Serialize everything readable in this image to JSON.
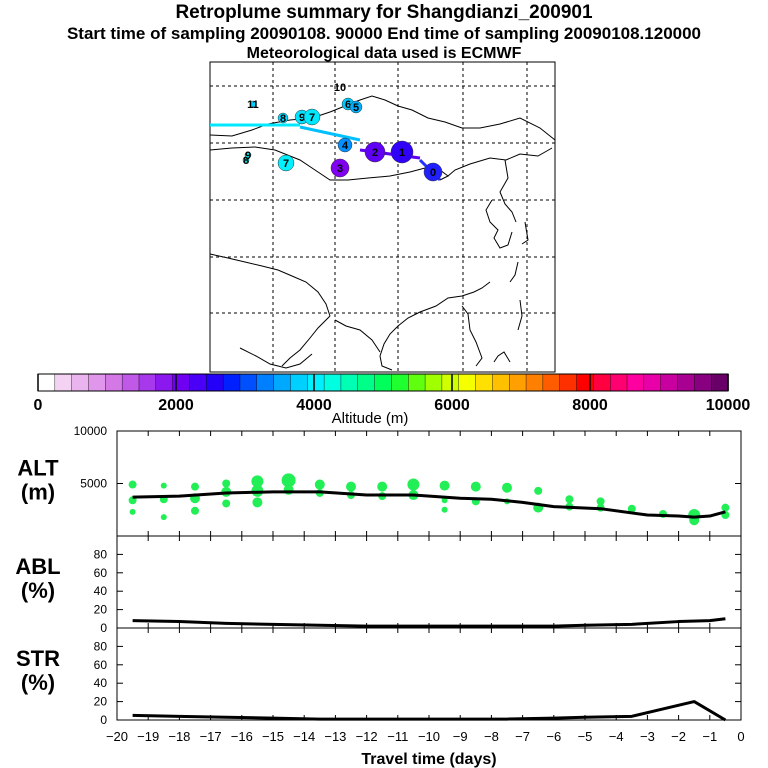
{
  "header": {
    "title": "Retroplume summary for Shangdianzi_200901",
    "line2": "Start time of sampling 20090108. 90000     End time of sampling 20090108.120000",
    "line3": "Meteorological data used is ECMWF"
  },
  "colorbar": {
    "ticks": [
      "0",
      "2000",
      "4000",
      "6000",
      "8000",
      "10000"
    ],
    "tick_values": [
      0,
      2000,
      4000,
      6000,
      8000,
      10000
    ],
    "label": "Altitude (m)",
    "colors": [
      "#ffffff",
      "#f4d2f4",
      "#eab4ee",
      "#e096ea",
      "#d478e6",
      "#c058e8",
      "#a838ec",
      "#8c18f0",
      "#7000f2",
      "#4a00f6",
      "#2400f8",
      "#0020ff",
      "#0050ff",
      "#0080ff",
      "#00a8ff",
      "#00d0ff",
      "#00f0ff",
      "#00ffe0",
      "#00ffb4",
      "#00ff88",
      "#00ff5a",
      "#20ff30",
      "#60ff10",
      "#a0ff00",
      "#d0ff00",
      "#f6ff00",
      "#ffe000",
      "#ffc000",
      "#ffa000",
      "#ff8000",
      "#ff5c00",
      "#ff3000",
      "#ff0000",
      "#ff0040",
      "#ff0070",
      "#ff00a0",
      "#e800a8",
      "#c800a0",
      "#a80090",
      "#880080",
      "#680068"
    ]
  },
  "map": {
    "markers": [
      {
        "label": "10",
        "color": "#ffffff",
        "size": 0
      },
      {
        "label": "11",
        "color": "#00d0ff",
        "size": 3
      },
      {
        "label": "9",
        "color": "#00e0ff",
        "size": 7
      },
      {
        "label": "8",
        "color": "#00d8ff",
        "size": 5
      },
      {
        "label": "7",
        "color": "#00e8ff",
        "size": 8
      },
      {
        "label": "6",
        "color": "#00c8ff",
        "size": 6
      },
      {
        "label": "5",
        "color": "#00b0ff",
        "size": 6
      },
      {
        "label": "4",
        "color": "#0090ff",
        "size": 7
      },
      {
        "label": "3",
        "color": "#8000f0",
        "size": 9
      },
      {
        "label": "2",
        "color": "#6000f4",
        "size": 10
      },
      {
        "label": "1",
        "color": "#3000f8",
        "size": 11
      },
      {
        "label": "0",
        "color": "#2020ff",
        "size": 9
      },
      {
        "label": "7",
        "color": "#00f0ff",
        "size": 8
      },
      {
        "label": "8",
        "color": "#00e0e0",
        "size": 3
      },
      {
        "label": "9",
        "color": "#00e0e0",
        "size": 3
      }
    ]
  },
  "chart_data": [
    {
      "type": "scatter",
      "name": "ALT",
      "ylabel": "ALT\n(m)",
      "ylabel_lines": [
        "ALT",
        "(m)"
      ],
      "ylim": [
        0,
        10000
      ],
      "yticks": [
        0,
        5000,
        10000
      ],
      "ytick_labels": [
        "",
        "5000",
        "10000"
      ],
      "xlim": [
        -20,
        0
      ],
      "line": {
        "x": [
          -19.5,
          -18,
          -16.5,
          -15,
          -13.5,
          -12,
          -10.5,
          -9,
          -8,
          -7,
          -6,
          -4.5,
          -3,
          -2,
          -1.5,
          -1,
          -0.5
        ],
        "y": [
          3700,
          3800,
          4100,
          4200,
          4200,
          3900,
          3900,
          3600,
          3500,
          3200,
          2800,
          2600,
          2000,
          1900,
          1800,
          1900,
          2300
        ]
      },
      "points": {
        "x": [
          -19.5,
          -19.5,
          -19.5,
          -18.5,
          -18.5,
          -18.5,
          -17.5,
          -17.5,
          -17.5,
          -16.5,
          -16.5,
          -16.5,
          -15.5,
          -15.5,
          -15.5,
          -14.5,
          -14.5,
          -13.5,
          -13.5,
          -12.5,
          -12.5,
          -11.5,
          -11.5,
          -10.5,
          -10.5,
          -9.5,
          -9.5,
          -9.5,
          -8.5,
          -8.5,
          -7.5,
          -7.5,
          -6.5,
          -6.5,
          -5.5,
          -5.5,
          -4.5,
          -4.5,
          -3.5,
          -2.5,
          -1.5,
          -1.5,
          -0.5,
          -0.5
        ],
        "y": [
          4900,
          3400,
          2300,
          4800,
          3500,
          1800,
          4700,
          3600,
          2400,
          5000,
          4200,
          3100,
          5200,
          4300,
          3200,
          5300,
          4400,
          4900,
          4100,
          4700,
          3900,
          4700,
          3800,
          4900,
          3900,
          4800,
          3400,
          2500,
          4700,
          3300,
          4600,
          3300,
          4300,
          2700,
          3500,
          2800,
          3300,
          2700,
          2600,
          2100,
          2000,
          1500,
          2700,
          2000
        ],
        "sizes": [
          4,
          4,
          3,
          3,
          4,
          3,
          4,
          5,
          4,
          4,
          5,
          4,
          6,
          6,
          5,
          7,
          5,
          5,
          4,
          5,
          4,
          5,
          4,
          6,
          5,
          5,
          3,
          3,
          5,
          4,
          5,
          3,
          4,
          5,
          4,
          4,
          4,
          4,
          4,
          4,
          6,
          5,
          4,
          4
        ],
        "color": "#22ee55"
      }
    },
    {
      "type": "line",
      "name": "ABL",
      "ylabel": "ABL\n(%)",
      "ylabel_lines": [
        "ABL",
        "(%)"
      ],
      "ylim": [
        0,
        100
      ],
      "yticks": [
        0,
        20,
        40,
        60,
        80
      ],
      "ytick_labels": [
        "0",
        "20",
        "40",
        "60",
        "80"
      ],
      "xlim": [
        -20,
        0
      ],
      "x": [
        -19.5,
        -18,
        -16.5,
        -15,
        -13.5,
        -12,
        -10.5,
        -9,
        -7.5,
        -6,
        -5,
        -3.5,
        -2,
        -1,
        -0.5
      ],
      "y": [
        8,
        7,
        5,
        4,
        3,
        2,
        2,
        2,
        2,
        2,
        3,
        4,
        7,
        8,
        10
      ]
    },
    {
      "type": "line",
      "name": "STR",
      "ylabel": "STR\n(%)",
      "ylabel_lines": [
        "STR",
        "(%)"
      ],
      "ylim": [
        0,
        100
      ],
      "yticks": [
        0,
        20,
        40,
        60,
        80
      ],
      "ytick_labels": [
        "0",
        "20",
        "40",
        "60",
        "80"
      ],
      "xlim": [
        -20,
        0
      ],
      "xticks": [
        -20,
        -19,
        -18,
        -17,
        -16,
        -15,
        -14,
        -13,
        -12,
        -11,
        -10,
        -9,
        -8,
        -7,
        -6,
        -5,
        -4,
        -3,
        -2,
        -1,
        0
      ],
      "xtick_labels": [
        "−20",
        "−19",
        "−18",
        "−17",
        "−16",
        "−15",
        "−14",
        "−13",
        "−12",
        "−11",
        "−10",
        "−9",
        "−8",
        "−7",
        "−6",
        "−5",
        "−4",
        "−3",
        "−2",
        "−1",
        "0"
      ],
      "xlabel": "Travel time (days)",
      "x": [
        -19.5,
        -18,
        -16.5,
        -15,
        -13.5,
        -12,
        -10.5,
        -9,
        -7.5,
        -6,
        -5,
        -3.5,
        -2.5,
        -1.5,
        -0.5
      ],
      "y": [
        5,
        4,
        3,
        2,
        1,
        1,
        1,
        1,
        1,
        2,
        3,
        4,
        12,
        20,
        0
      ]
    }
  ]
}
